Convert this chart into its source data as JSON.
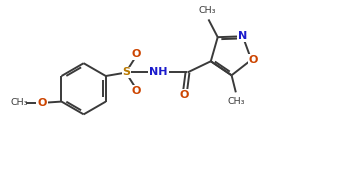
{
  "bg_color": "#ffffff",
  "bond_color": "#3a3a3a",
  "N_color": "#1a1acc",
  "O_color": "#cc4400",
  "S_color": "#b87800",
  "lw": 1.4,
  "fig_width": 3.52,
  "fig_height": 1.79,
  "dpi": 100,
  "fs": 7.5,
  "fs_small": 6.8,
  "xlim": [
    0,
    9.5
  ],
  "ylim": [
    0,
    5
  ]
}
